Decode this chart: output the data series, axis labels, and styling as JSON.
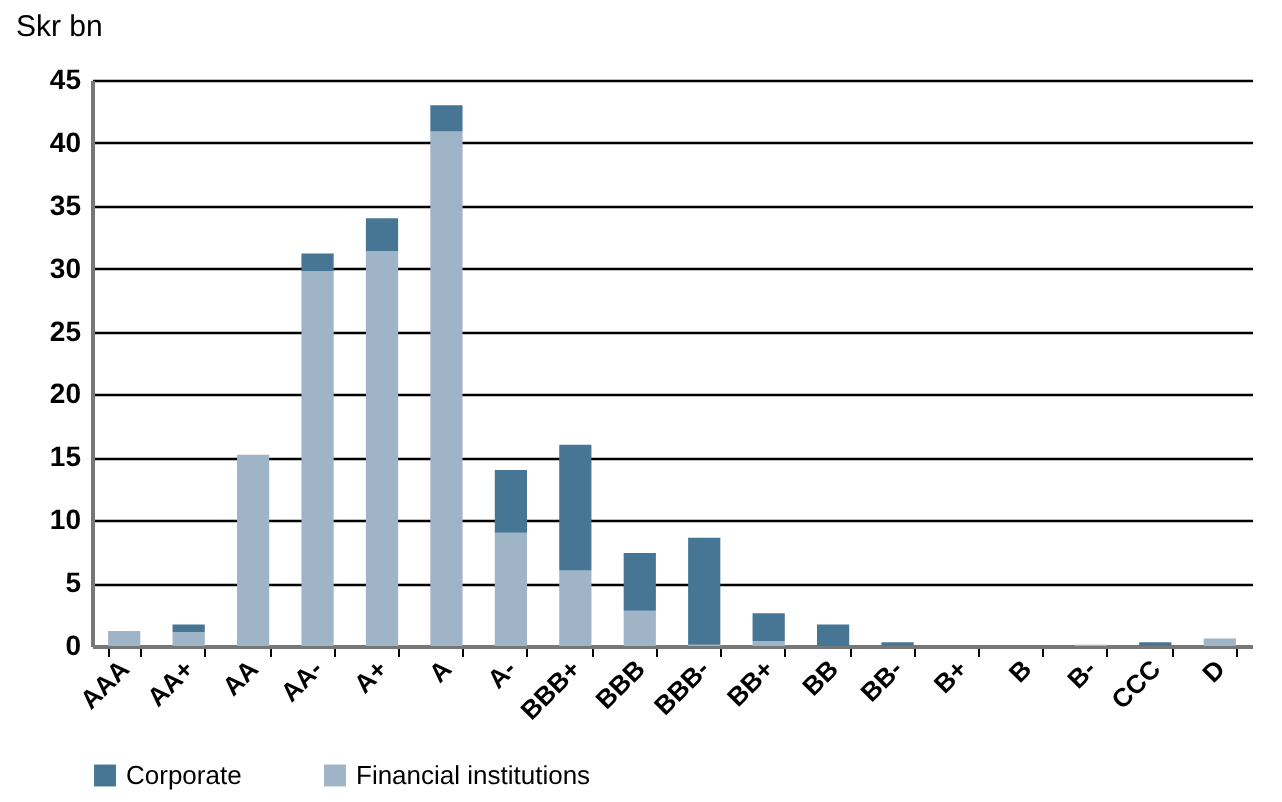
{
  "chart_data": {
    "type": "bar",
    "title": "Skr bn",
    "stacked": true,
    "categories": [
      "AAA",
      "AA+",
      "AA",
      "AA-",
      "A+",
      "A",
      "A-",
      "BBB+",
      "BBB",
      "BBB-",
      "BB+",
      "BB",
      "BB-",
      "B+",
      "B",
      "B-",
      "CCC",
      "D"
    ],
    "series": [
      {
        "name": "Financial institutions",
        "color": "#a0b4c8",
        "values": [
          1.2,
          1.1,
          15.2,
          29.8,
          31.4,
          40.9,
          9,
          6,
          2.8,
          0.1,
          0.4,
          0,
          0,
          0,
          0,
          0.1,
          0,
          0.6
        ]
      },
      {
        "name": "Corporate",
        "color": "#477594",
        "values": [
          0,
          0.6,
          0,
          1.4,
          2.6,
          2.1,
          5,
          10,
          4.6,
          8.5,
          2.2,
          1.7,
          0.3,
          null,
          null,
          0,
          0.3,
          0
        ]
      }
    ],
    "ylim": [
      0,
      45
    ],
    "yticks": [
      0,
      5,
      10,
      15,
      20,
      25,
      30,
      35,
      40,
      45
    ],
    "grid": "y",
    "legend": "bottom"
  }
}
